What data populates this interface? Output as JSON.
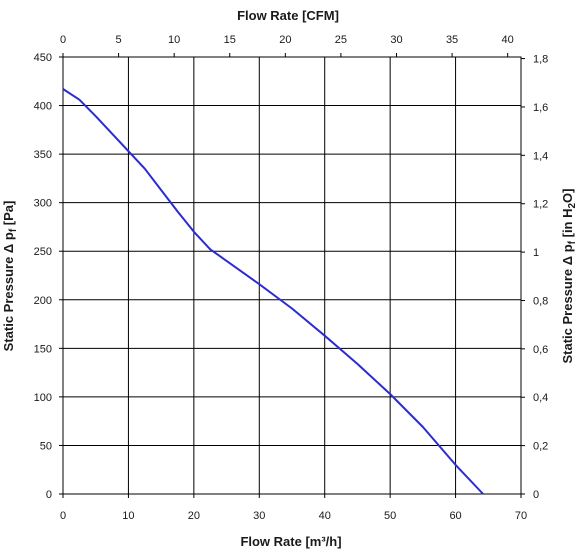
{
  "chart_data": {
    "type": "line",
    "title": "",
    "xlabel": "Flow Rate [m³/h]",
    "x2label": "Flow Rate [CFM]",
    "ylabel": "Static Pressure Δ pf [Pa]",
    "ylabel_parts": {
      "main": "Static Pressure Δ p",
      "sub": "f",
      "unit": " [Pa]"
    },
    "y2label": "Static Pressure Δ pf [in H2O]",
    "y2label_parts": {
      "main": "Static Pressure Δ p",
      "sub": "f",
      "unit_pre": " [in H",
      "unit_sub": "2",
      "unit_post": "O]"
    },
    "xlim": [
      0,
      70
    ],
    "ylim": [
      0,
      450
    ],
    "x2lim": [
      0,
      41.2
    ],
    "y2lim": [
      0,
      1.8065
    ],
    "x_ticks": [
      "0",
      "10",
      "20",
      "30",
      "40",
      "50",
      "60",
      "70"
    ],
    "y_ticks": [
      "0",
      "50",
      "100",
      "150",
      "200",
      "250",
      "300",
      "350",
      "400",
      "450"
    ],
    "x2_ticks": [
      "0",
      "5",
      "10",
      "15",
      "20",
      "25",
      "30",
      "35",
      "40"
    ],
    "y2_ticks": [
      "0",
      "0,2",
      "0,4",
      "0,6",
      "0,8",
      "1",
      "1,2",
      "1,4",
      "1,6",
      "1,8"
    ],
    "grid": true,
    "line_color": "#2b2bd6",
    "series": [
      {
        "x": [
          0,
          2.5,
          5,
          7.5,
          10,
          12.5,
          15,
          17.5,
          20,
          22.5,
          25,
          30,
          35,
          40,
          45,
          50,
          55,
          60,
          64.2
        ],
        "y": [
          417,
          406,
          389,
          371,
          353,
          335,
          313,
          291,
          270,
          252,
          240,
          216,
          191,
          163,
          134,
          103,
          69,
          30,
          0
        ]
      }
    ]
  }
}
